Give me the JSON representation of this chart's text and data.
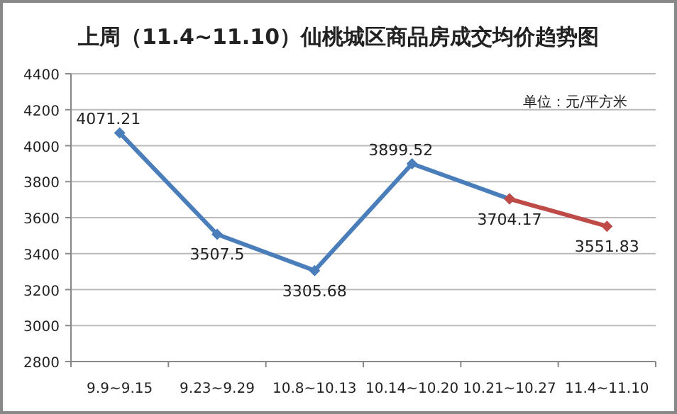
{
  "chart_data": {
    "type": "line",
    "title": "上周（11.4~11.10）仙桃城区商品房成交均价趋势图",
    "annotations": [
      "单位：元/平方米"
    ],
    "categories": [
      "9.9~9.15",
      "9.23~9.29",
      "10.8~10.13",
      "10.14~10.20",
      "10.21~10.27",
      "11.4~11.10"
    ],
    "series": [
      {
        "color": "#4a7ebb",
        "values": [
          4071.21,
          3507.5,
          3305.68,
          3899.52,
          3704.17,
          null
        ],
        "value_labels": [
          "4071.21",
          "3507.5",
          "3305.68",
          "3899.52",
          "3704.17",
          null
        ]
      },
      {
        "color": "#be4b48",
        "values": [
          null,
          null,
          null,
          null,
          3704.17,
          3551.83
        ],
        "value_labels": [
          null,
          null,
          null,
          null,
          null,
          "3551.83"
        ]
      }
    ],
    "ylim": [
      2800,
      4400
    ],
    "yticks": [
      2800,
      3000,
      3200,
      3400,
      3600,
      3800,
      4000,
      4200,
      4400
    ],
    "grid": "y",
    "marker": "diamond",
    "line_style": "solid"
  }
}
